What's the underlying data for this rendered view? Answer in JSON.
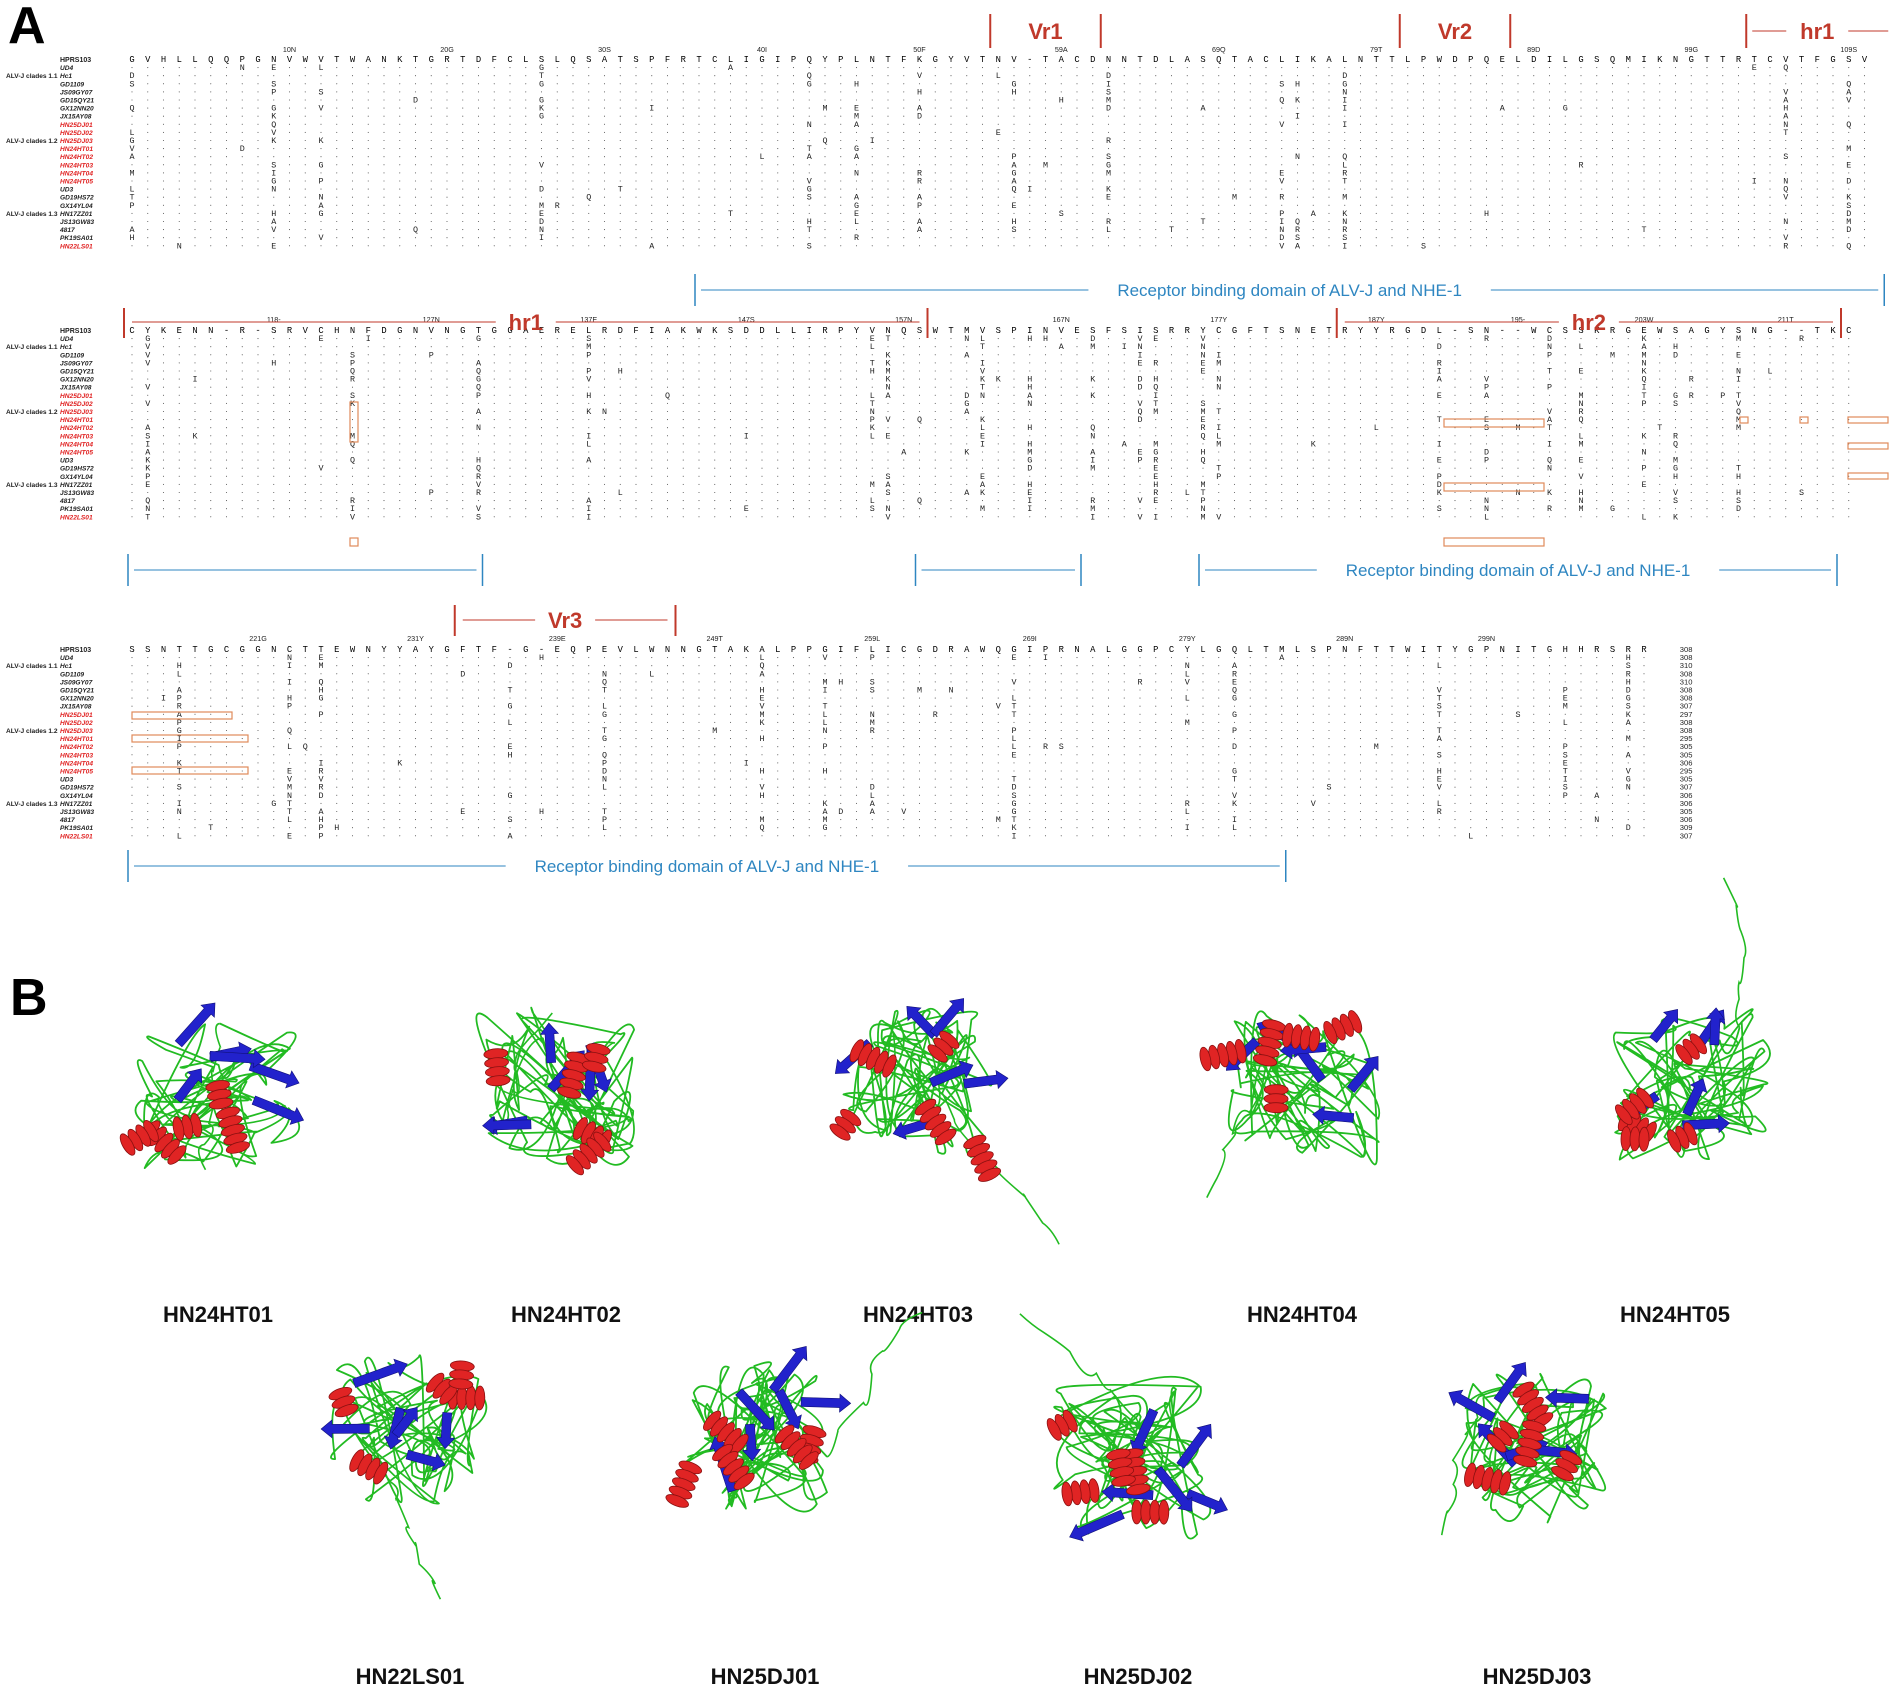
{
  "panels": {
    "a": "A",
    "b": "B"
  },
  "strains": [
    {
      "name": "HPRS103",
      "highlight": false,
      "ref": true
    },
    {
      "name": "UD4",
      "highlight": false
    },
    {
      "name": "Hc1",
      "highlight": false
    },
    {
      "name": "GD1109",
      "highlight": false
    },
    {
      "name": "JS09GY07",
      "highlight": false
    },
    {
      "name": "GD15QY21",
      "highlight": false
    },
    {
      "name": "GX12NN20",
      "highlight": false
    },
    {
      "name": "JX15AY08",
      "highlight": false
    },
    {
      "name": "HN25DJ01",
      "highlight": true
    },
    {
      "name": "HN25DJ02",
      "highlight": true
    },
    {
      "name": "HN25DJ03",
      "highlight": true
    },
    {
      "name": "HN24HT01",
      "highlight": true
    },
    {
      "name": "HN24HT02",
      "highlight": true
    },
    {
      "name": "HN24HT03",
      "highlight": true
    },
    {
      "name": "HN24HT04",
      "highlight": true
    },
    {
      "name": "HN24HT05",
      "highlight": true
    },
    {
      "name": "UD3",
      "highlight": false
    },
    {
      "name": "GD19HS72",
      "highlight": false
    },
    {
      "name": "GX14YL04",
      "highlight": false
    },
    {
      "name": "HN17ZZ01",
      "highlight": false
    },
    {
      "name": "JS13GW83",
      "highlight": false
    },
    {
      "name": "4817",
      "highlight": false
    },
    {
      "name": "PK19SA01",
      "highlight": false
    },
    {
      "name": "HN22LS01",
      "highlight": true
    }
  ],
  "clades": [
    {
      "label": "ALV-J clades 1.1",
      "row": 1
    },
    {
      "label": "ALV-J clades 1.2",
      "row": 9
    },
    {
      "label": "ALV-J clades 1.3",
      "row": 18
    }
  ],
  "blocks": [
    {
      "reference": "GVHLLQQPGNVWVTWANKTGRTDFCLSLQSATSPFRTCLIGIPQYPLNTFKGYVTNV-TACDNNTDLASQTACLIKALNTTLPWDPQELDILGSQMIKNGTTRTCVTFGSV",
      "ticks": [
        {
          "label": "10N",
          "col": 10
        },
        {
          "label": "20G",
          "col": 20
        },
        {
          "label": "30S",
          "col": 30
        },
        {
          "label": "40I",
          "col": 40
        },
        {
          "label": "50F",
          "col": 50
        },
        {
          "label": "59A",
          "col": 59
        },
        {
          "label": "69Q",
          "col": 69
        },
        {
          "label": "79T",
          "col": 79
        },
        {
          "label": "89D",
          "col": 89
        },
        {
          "label": "99G",
          "col": 99
        },
        {
          "label": "109S",
          "col": 109
        }
      ],
      "regions": [
        {
          "label": "Vr1",
          "start": 55,
          "end": 61
        },
        {
          "label": "Vr2",
          "start": 81,
          "end": 87
        },
        {
          "label": "hr1",
          "start": 103,
          "end": 111,
          "open_end": true
        }
      ],
      "rbd": [
        {
          "label": "Receptor binding domain of ALV-J and NHE-1",
          "start": 36,
          "end": 111
        }
      ]
    },
    {
      "reference": "CYKENN-R-SRVCHNFDGNVNGTGGAERELRDFIAKWKSDDLLIRPYVNQSWTMVSPINVESFSISRRYCGFTSNETRYYRGDL-SN--WCSSKRGEWSAGYSNG--TKC",
      "ticks": [
        {
          "label": "118-",
          "col": 9
        },
        {
          "label": "127N",
          "col": 19
        },
        {
          "label": "137E",
          "col": 29
        },
        {
          "label": "147S",
          "col": 39
        },
        {
          "label": "157N",
          "col": 49
        },
        {
          "label": "167N",
          "col": 59
        },
        {
          "label": "177Y",
          "col": 69
        },
        {
          "label": "187Y",
          "col": 79
        },
        {
          "label": "195-",
          "col": 88
        },
        {
          "label": "203W",
          "col": 96
        },
        {
          "label": "211T",
          "col": 105
        }
      ],
      "regions": [
        {
          "label": "hr1",
          "start": 0,
          "end": 50
        },
        {
          "label": "hr2",
          "start": 77,
          "end": 108
        }
      ],
      "rbd": [
        {
          "label": "",
          "start": 0,
          "end": 22
        },
        {
          "label": "",
          "start": 50,
          "end": 60
        },
        {
          "label": "Receptor binding domain of ALV-J and NHE-1",
          "start": 68,
          "end": 108
        }
      ]
    },
    {
      "reference": "SSNTTGCGGNCTTEWNYYAYGFTF-G-EQPEVLWNNGTAKALPPGIFLICGDRAWQGIPRNALGGPCYLGQLTMLSPNFTTWITYGPNITGHHRSRR",
      "ticks": [
        {
          "label": "221G",
          "col": 8
        },
        {
          "label": "231Y",
          "col": 18
        },
        {
          "label": "239E",
          "col": 27
        },
        {
          "label": "249T",
          "col": 37
        },
        {
          "label": "259L",
          "col": 47
        },
        {
          "label": "269I",
          "col": 57
        },
        {
          "label": "279Y",
          "col": 67
        },
        {
          "label": "289N",
          "col": 77
        },
        {
          "label": "299N",
          "col": 86
        }
      ],
      "regions": [
        {
          "label": "Vr3",
          "start": 21,
          "end": 34
        }
      ],
      "rbd": [
        {
          "label": "Receptor binding domain of ALV-J and NHE-1",
          "start": 0,
          "end": 73
        }
      ],
      "lengths": [
        "308",
        "308",
        "310",
        "308",
        "310",
        "308",
        "308",
        "307",
        "297",
        "308",
        "308",
        "295",
        "305",
        "305",
        "306",
        "295",
        "305",
        "307",
        "306",
        "306",
        "305",
        "306",
        "309",
        "307"
      ]
    }
  ],
  "models": [
    {
      "label": "HN24HT01"
    },
    {
      "label": "HN24HT02"
    },
    {
      "label": "HN24HT03"
    },
    {
      "label": "HN24HT04"
    },
    {
      "label": "HN24HT05"
    },
    {
      "label": "HN22LS01"
    },
    {
      "label": "HN25DJ01"
    },
    {
      "label": "HN25DJ02"
    },
    {
      "label": "HN25DJ03"
    }
  ],
  "colors": {
    "region": "#c0392b",
    "rbd": "#2e86c1",
    "highlight_strain": "#e02020",
    "box": "#e08a5a",
    "helix": "#e02424",
    "sheet": "#2222cc",
    "coil": "#22bb22"
  }
}
